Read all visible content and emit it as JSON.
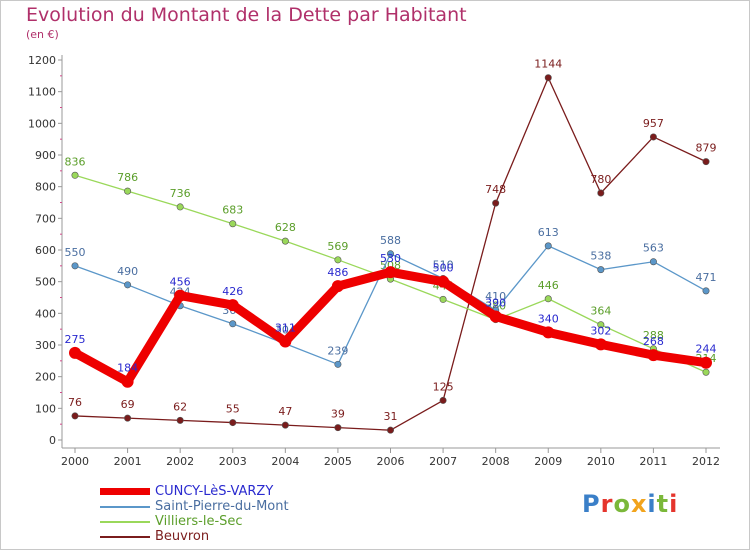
{
  "header": {
    "title": "Evolution du Montant de la Dette par Habitant",
    "subtitle": "(en €)"
  },
  "logo": {
    "text": "Proxiti",
    "colors": [
      "#3a7fc8",
      "#e5352d",
      "#7bb83a",
      "#f2a41d",
      "#3a7fc8",
      "#7bb83a",
      "#e5352d"
    ]
  },
  "chart_data": {
    "type": "line",
    "title": "Evolution du Montant de la Dette par Habitant",
    "subtitle": "(en €)",
    "xlabel": "",
    "ylabel": "",
    "x": [
      "2000",
      "2001",
      "2002",
      "2003",
      "2004",
      "2005",
      "2006",
      "2007",
      "2008",
      "2009",
      "2010",
      "2011",
      "2012"
    ],
    "ylim": [
      0,
      1200
    ],
    "yticks": [
      0,
      100,
      200,
      300,
      400,
      500,
      600,
      700,
      800,
      900,
      1000,
      1100,
      1200
    ],
    "grid": false,
    "legend_position": "bottom-left",
    "series": [
      {
        "name": "CUNCY-LèS-VARZY",
        "color": "#ee0000",
        "label_color": "#2a2acf",
        "thick": true,
        "values": [
          275,
          184,
          456,
          426,
          311,
          486,
          530,
          500,
          390,
          340,
          302,
          268,
          244
        ]
      },
      {
        "name": "Saint-Pierre-du-Mont",
        "color": "#5b97c9",
        "label_color": "#4a6ea0",
        "thick": false,
        "values": [
          550,
          490,
          424,
          367,
          304,
          239,
          588,
          510,
          410,
          613,
          538,
          563,
          471
        ]
      },
      {
        "name": "Villiers-le-Sec",
        "color": "#9ad85a",
        "label_color": "#5b9e2a",
        "thick": false,
        "values": [
          836,
          786,
          736,
          683,
          628,
          569,
          508,
          444,
          380,
          446,
          364,
          288,
          214
        ]
      },
      {
        "name": "Beuvron",
        "color": "#7a1c1c",
        "label_color": "#7a1c1c",
        "thick": false,
        "values": [
          76,
          69,
          62,
          55,
          47,
          39,
          31,
          125,
          748,
          1144,
          780,
          957,
          879
        ]
      }
    ]
  }
}
